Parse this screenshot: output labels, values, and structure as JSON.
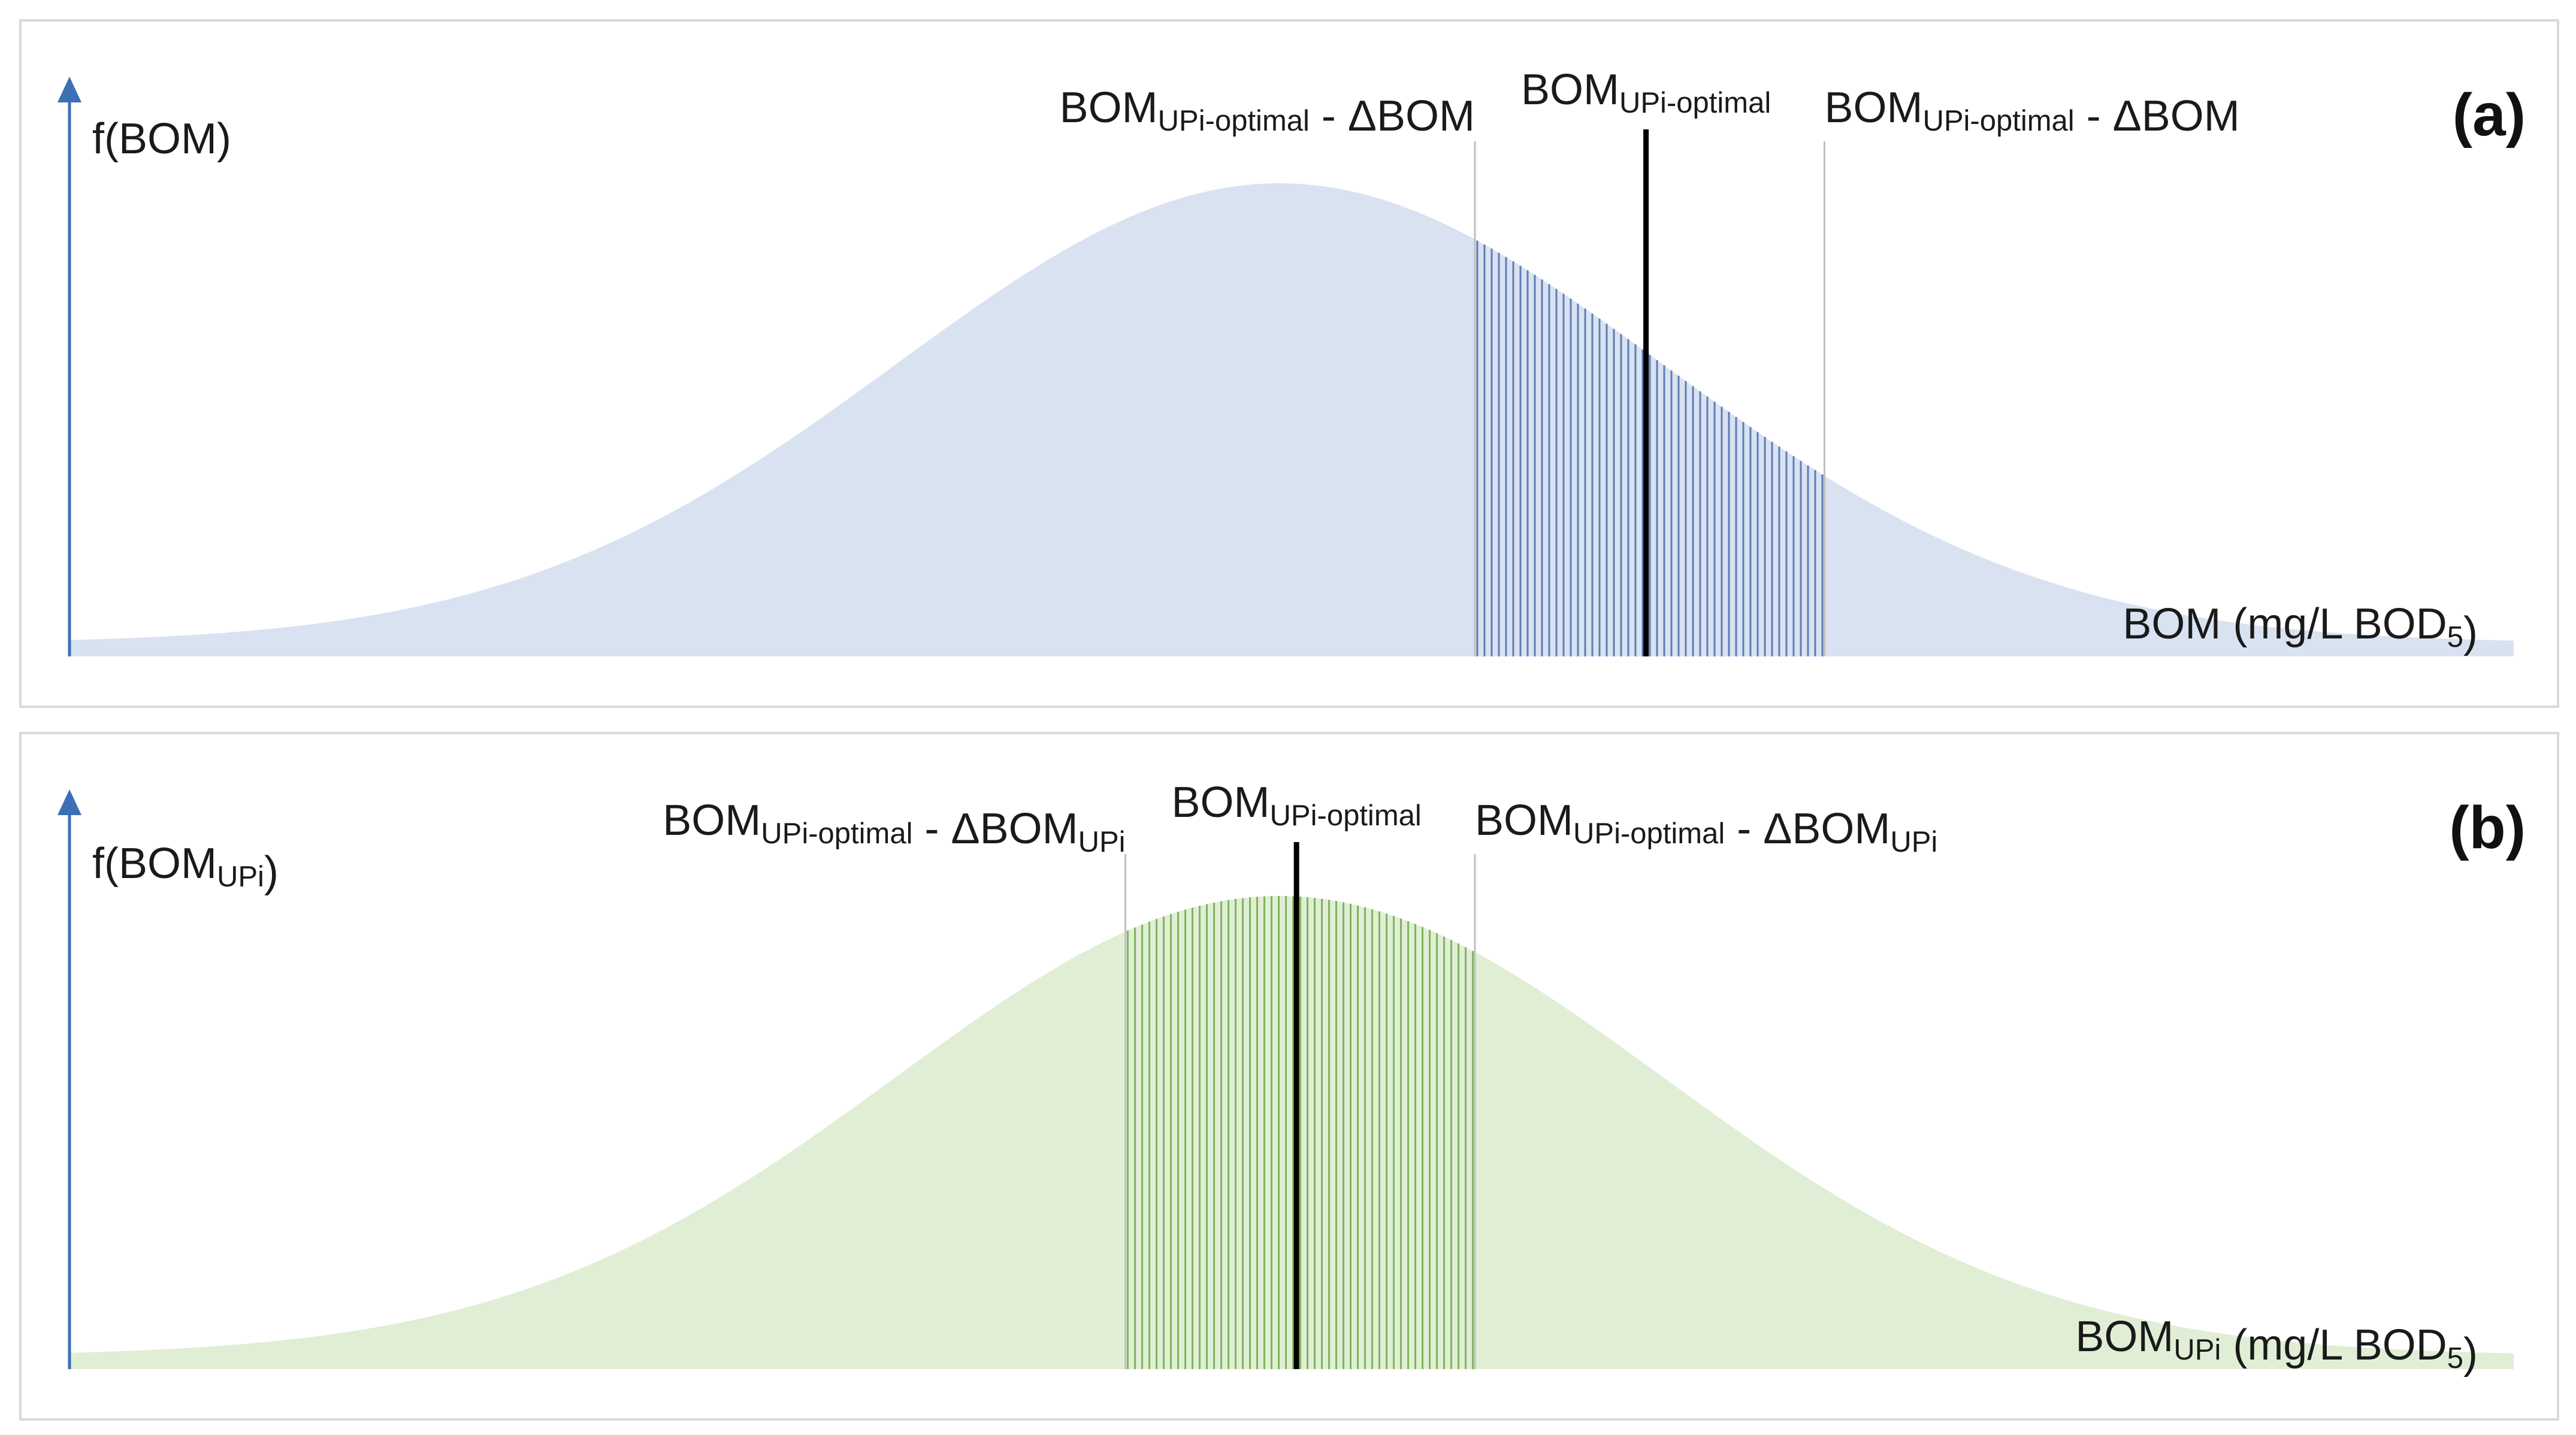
{
  "panels": [
    {
      "tag": "(a)",
      "y_axis_label": "f(BOM)",
      "x_axis_label": "BOM (mg/L  BOD",
      "x_axis_label_sub": "5",
      "x_axis_label_end": ")",
      "markers": {
        "left": {
          "main": "BOM",
          "sub": "UPi-optimal",
          "rest": " - ΔBOM",
          "rest_sub": ""
        },
        "center": {
          "main": "BOM",
          "sub": "UPi-optimal"
        },
        "right": {
          "main": "BOM",
          "sub": "UPi-optimal",
          "rest": " - ΔBOM",
          "rest_sub": ""
        }
      },
      "fill_color": "#d9e2f1",
      "hatch_color": "#5b7fb5",
      "peak_fraction": 0.495,
      "band": [
        0.575,
        0.718
      ],
      "optimal": 0.645
    },
    {
      "tag": "(b)",
      "y_axis_label": "f(BOM",
      "y_axis_label_sub": "UPi",
      "y_axis_label_end": ")",
      "x_axis_label": "BOM",
      "x_axis_label_sub1": "UPi",
      "x_axis_label_mid": " (mg/L  BOD",
      "x_axis_label_sub": "5",
      "x_axis_label_end": ")",
      "markers": {
        "left": {
          "main": "BOM",
          "sub": "UPi-optimal",
          "rest": " - ΔBOM",
          "rest_sub": "UPi"
        },
        "center": {
          "main": "BOM",
          "sub": "UPi-optimal"
        },
        "right": {
          "main": "BOM",
          "sub": "UPi-optimal",
          "rest": " - ΔBOM",
          "rest_sub": "UPi"
        }
      },
      "fill_color": "#e1eed6",
      "hatch_color": "#7cb55a",
      "peak_fraction": 0.495,
      "band": [
        0.432,
        0.575
      ],
      "optimal": 0.502
    }
  ],
  "axis_color": "#3d6fb6",
  "optimal_line_color": "#000000",
  "guide_line_color": "#bfbfbf"
}
